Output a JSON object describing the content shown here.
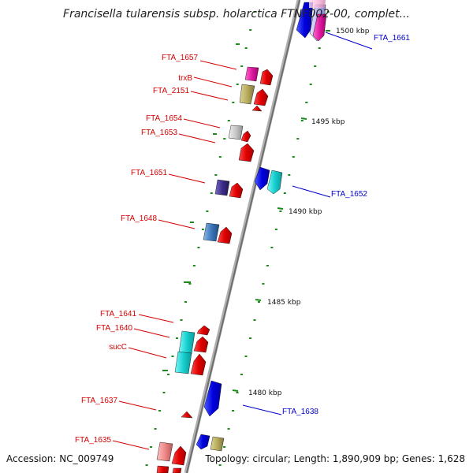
{
  "title": "Francisella tularensis subsp. holarctica FTNF002-00, complet...",
  "footer": {
    "accession": "Accession: NC_009749",
    "summary": "Topology: circular; Length: 1,890,909 bp; Genes: 1,628"
  },
  "colors": {
    "forward_label": "#d40000",
    "reverse_label": "#0000cc",
    "backbone": "#8c8c8c",
    "tick": "#1a8a1a"
  },
  "ticks": [
    "1500 kbp",
    "1495 kbp",
    "1490 kbp",
    "1485 kbp",
    "1480 kbp"
  ],
  "labels": [
    {
      "id": "FTA_1661",
      "text": "FTA_1661",
      "strand": "reverse"
    },
    {
      "id": "FTA_1657",
      "text": "FTA_1657",
      "strand": "forward"
    },
    {
      "id": "trxB",
      "text": "trxB",
      "strand": "forward"
    },
    {
      "id": "FTA_2151",
      "text": "FTA_2151",
      "strand": "forward"
    },
    {
      "id": "FTA_1654",
      "text": "FTA_1654",
      "strand": "forward"
    },
    {
      "id": "FTA_1653",
      "text": "FTA_1653",
      "strand": "forward"
    },
    {
      "id": "FTA_1651",
      "text": "FTA_1651",
      "strand": "forward"
    },
    {
      "id": "FTA_1652",
      "text": "FTA_1652",
      "strand": "reverse"
    },
    {
      "id": "FTA_1648",
      "text": "FTA_1648",
      "strand": "forward"
    },
    {
      "id": "FTA_1641",
      "text": "FTA_1641",
      "strand": "forward"
    },
    {
      "id": "FTA_1640",
      "text": "FTA_1640",
      "strand": "forward"
    },
    {
      "id": "sucC",
      "text": "sucC",
      "strand": "forward"
    },
    {
      "id": "FTA_1637",
      "text": "FTA_1637",
      "strand": "forward"
    },
    {
      "id": "FTA_1638",
      "text": "FTA_1638",
      "strand": "reverse"
    },
    {
      "id": "FTA_1635",
      "text": "FTA_1635",
      "strand": "forward"
    }
  ]
}
